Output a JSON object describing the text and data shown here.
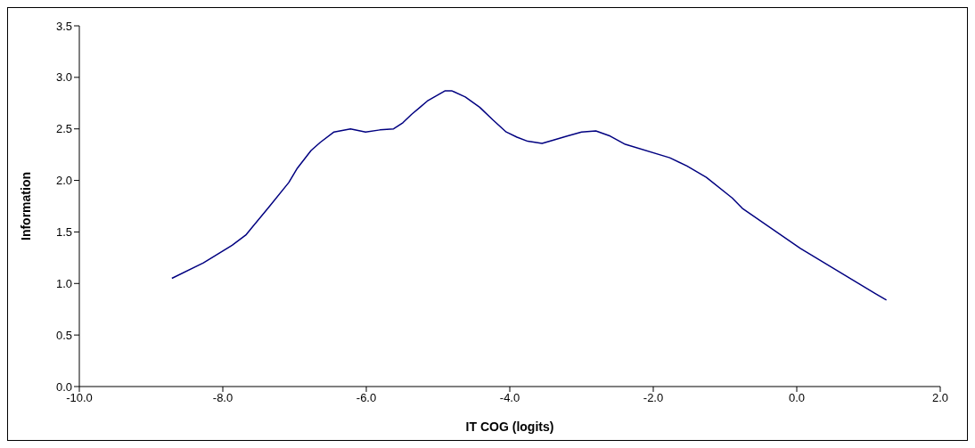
{
  "chart_data": {
    "type": "line",
    "xlabel": "IT COG (logits)",
    "ylabel": "Information",
    "xlim": [
      -10,
      2
    ],
    "xticks": [
      {
        "value": -10,
        "label": "-10.0"
      },
      {
        "value": -8,
        "label": "-8.0"
      },
      {
        "value": -6,
        "label": "-6.0"
      },
      {
        "value": -4,
        "label": "-4.0"
      },
      {
        "value": -2,
        "label": "-2.0"
      },
      {
        "value": 0,
        "label": "0.0"
      },
      {
        "value": 2,
        "label": "2.0"
      }
    ],
    "ylim": [
      0,
      3.5
    ],
    "yticks": [
      {
        "value": 0,
        "label": "0.0"
      },
      {
        "value": 0.5,
        "label": "0.5"
      },
      {
        "value": 1,
        "label": "1.0"
      },
      {
        "value": 1.5,
        "label": "1.5"
      },
      {
        "value": 2,
        "label": "2.0"
      },
      {
        "value": 2.5,
        "label": "2.5"
      },
      {
        "value": 3,
        "label": "3.0"
      },
      {
        "value": 3.5,
        "label": "3.5"
      }
    ],
    "grid": false,
    "legend": false,
    "marker": "none",
    "line_style": "solid",
    "x": [
      -8.71,
      -8.27,
      -7.87,
      -7.68,
      -7.36,
      -7.08,
      -6.96,
      -6.77,
      -6.64,
      -6.45,
      -6.22,
      -6.01,
      -5.81,
      -5.62,
      -5.49,
      -5.37,
      -5.25,
      -5.15,
      -4.9,
      -4.81,
      -4.62,
      -4.42,
      -4.24,
      -4.05,
      -3.9,
      -3.75,
      -3.55,
      -3.4,
      -3.2,
      -3.0,
      -2.8,
      -2.6,
      -2.39,
      -1.77,
      -1.53,
      -1.26,
      -0.9,
      -0.76,
      0.05,
      1.1,
      1.25
    ],
    "series": [
      {
        "color": "#000080",
        "values": [
          1.05,
          1.2,
          1.37,
          1.47,
          1.74,
          1.98,
          2.12,
          2.29,
          2.37,
          2.47,
          2.5,
          2.47,
          2.49,
          2.5,
          2.56,
          2.64,
          2.71,
          2.77,
          2.87,
          2.87,
          2.81,
          2.71,
          2.59,
          2.47,
          2.42,
          2.38,
          2.36,
          2.39,
          2.43,
          2.47,
          2.48,
          2.43,
          2.35,
          2.22,
          2.14,
          2.03,
          1.83,
          1.73,
          1.34,
          0.9,
          0.84
        ]
      }
    ]
  }
}
